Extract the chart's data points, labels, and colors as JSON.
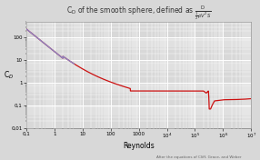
{
  "title_main": "C",
  "title_sub": "D",
  "title_rest": " of the smooth sphere, defined as ",
  "title_frac_num": "D",
  "title_frac_den": "½pV² S",
  "xlabel": "Reynolds",
  "ylabel": "C",
  "ylabel_sub": "D",
  "xlim": [
    0.1,
    10000000.0
  ],
  "ylim": [
    0.01,
    500
  ],
  "background_color": "#d8d8d8",
  "grid_major_color": "#ffffff",
  "grid_minor_color": "#e8e8e8",
  "line_color_red": "#cc1111",
  "line_color_blue": "#8888cc",
  "footnote": "After the equations of Cliff, Grace, and Weber",
  "blue_re_max": 5.0,
  "drag_crisis_re": 300000.0,
  "drag_crisis_bottom": 0.07,
  "drag_post_crisis": 0.18,
  "cd_plateau": 0.44
}
